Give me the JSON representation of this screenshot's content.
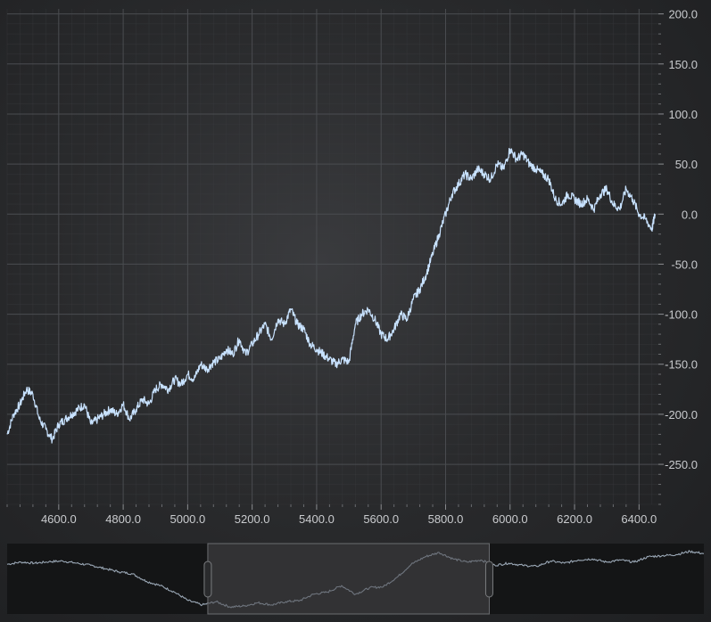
{
  "chart_data": {
    "type": "line",
    "title": "",
    "xlabel": "",
    "ylabel": "",
    "xlim": [
      4440,
      6460
    ],
    "ylim": [
      -290,
      205
    ],
    "x_ticks": [
      4600,
      4800,
      5000,
      5200,
      5400,
      5600,
      5800,
      6000,
      6200,
      6400
    ],
    "y_ticks": [
      200,
      150,
      100,
      50,
      0,
      -50,
      -100,
      -150,
      -200,
      -250
    ],
    "x_tick_labels": [
      "4600.0",
      "4800.0",
      "5000.0",
      "5200.0",
      "5400.0",
      "5600.0",
      "5800.0",
      "6000.0",
      "6200.0",
      "6400.0"
    ],
    "y_tick_labels": [
      "200.0",
      "150.0",
      "100.0",
      "50.0",
      "0.0",
      "-50.0",
      "-100.0",
      "-150.0",
      "-200.0",
      "-250.0"
    ],
    "grid": true,
    "line_color": "#c8e2ff",
    "series": [
      {
        "x": [
          4440,
          4460,
          4480,
          4500,
          4520,
          4540,
          4560,
          4580,
          4600,
          4620,
          4640,
          4660,
          4680,
          4700,
          4720,
          4740,
          4760,
          4780,
          4800,
          4820,
          4840,
          4860,
          4880,
          4900,
          4920,
          4940,
          4960,
          4980,
          5000,
          5020,
          5040,
          5060,
          5080,
          5100,
          5120,
          5140,
          5160,
          5180,
          5200,
          5220,
          5240,
          5260,
          5280,
          5300,
          5320,
          5340,
          5360,
          5380,
          5400,
          5420,
          5440,
          5460,
          5480,
          5500,
          5520,
          5540,
          5560,
          5580,
          5600,
          5620,
          5640,
          5660,
          5680,
          5700,
          5720,
          5740,
          5760,
          5780,
          5800,
          5820,
          5840,
          5860,
          5880,
          5900,
          5920,
          5940,
          5960,
          5980,
          6000,
          6020,
          6040,
          6060,
          6080,
          6100,
          6120,
          6140,
          6160,
          6180,
          6200,
          6220,
          6240,
          6260,
          6280,
          6300,
          6320,
          6340,
          6360,
          6380,
          6400,
          6420,
          6440,
          6450
        ],
        "y": [
          -220,
          -200,
          -190,
          -175,
          -180,
          -205,
          -215,
          -225,
          -210,
          -205,
          -200,
          -195,
          -190,
          -210,
          -205,
          -200,
          -195,
          -200,
          -190,
          -205,
          -195,
          -185,
          -190,
          -175,
          -170,
          -175,
          -165,
          -170,
          -160,
          -165,
          -150,
          -155,
          -148,
          -145,
          -135,
          -140,
          -125,
          -140,
          -130,
          -120,
          -110,
          -125,
          -105,
          -110,
          -95,
          -110,
          -115,
          -130,
          -135,
          -140,
          -145,
          -150,
          -145,
          -148,
          -110,
          -100,
          -95,
          -105,
          -120,
          -125,
          -115,
          -100,
          -105,
          -85,
          -75,
          -60,
          -40,
          -20,
          0,
          20,
          30,
          40,
          35,
          45,
          40,
          35,
          50,
          45,
          65,
          55,
          60,
          50,
          45,
          40,
          35,
          15,
          10,
          20,
          15,
          10,
          15,
          5,
          20,
          25,
          10,
          5,
          25,
          15,
          0,
          -5,
          -15,
          0
        ]
      }
    ],
    "overview": {
      "type": "area",
      "xlim": [
        3000,
        8000
      ],
      "selection": [
        4440,
        6460
      ],
      "x": [
        3000,
        3100,
        3200,
        3300,
        3400,
        3500,
        3600,
        3700,
        3800,
        3900,
        4000,
        4100,
        4200,
        4300,
        4400,
        4500,
        4600,
        4700,
        4800,
        4900,
        5000,
        5100,
        5200,
        5300,
        5400,
        5500,
        5600,
        5700,
        5800,
        5900,
        6000,
        6100,
        6200,
        6300,
        6400,
        6500,
        6600,
        6700,
        6800,
        6900,
        7000,
        7100,
        7200,
        7300,
        7400,
        7500,
        7600,
        7700,
        7800,
        7900,
        8000
      ],
      "y": [
        0,
        10,
        5,
        12,
        15,
        5,
        -5,
        -20,
        -35,
        -45,
        -80,
        -100,
        -130,
        -170,
        -190,
        -175,
        -200,
        -195,
        -180,
        -190,
        -175,
        -170,
        -140,
        -130,
        -100,
        -140,
        -110,
        -105,
        -60,
        0,
        35,
        55,
        25,
        10,
        20,
        -5,
        5,
        -5,
        -10,
        15,
        5,
        20,
        25,
        10,
        20,
        10,
        35,
        40,
        45,
        60,
        50
      ]
    }
  }
}
